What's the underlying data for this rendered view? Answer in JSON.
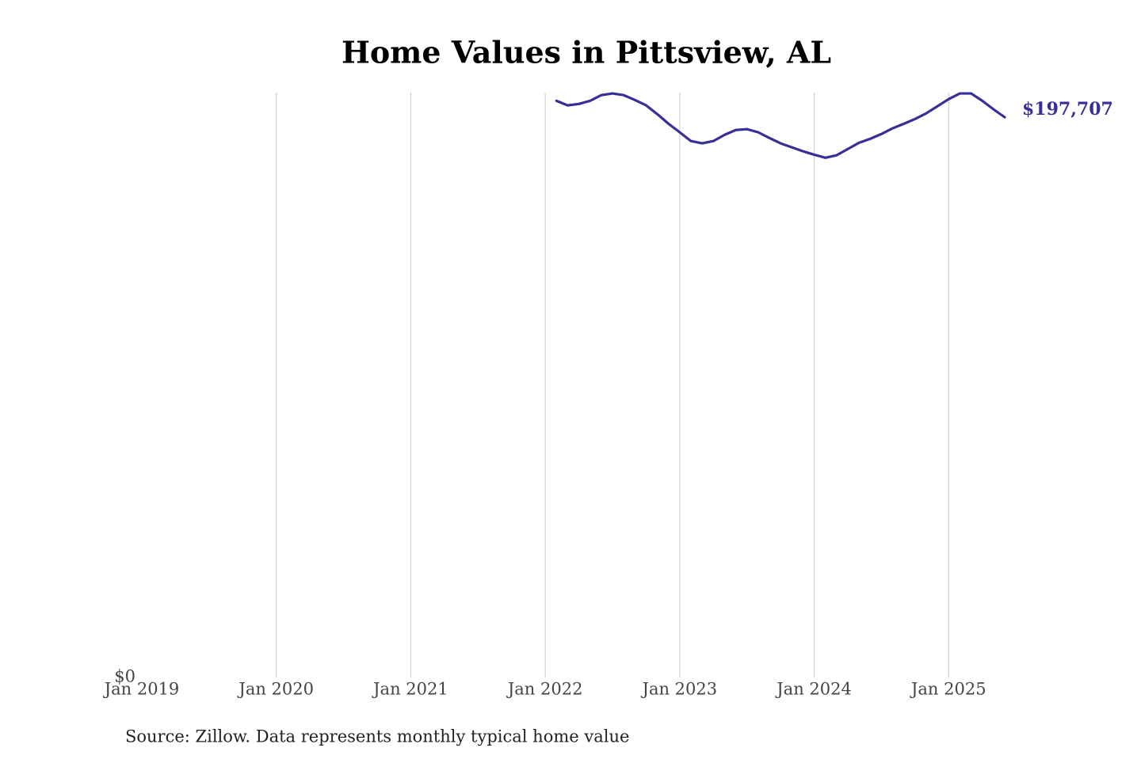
{
  "chart_data": {
    "type": "line",
    "title": "Home Values in Pittsview, AL",
    "source": "Source: Zillow. Data represents monthly typical home value",
    "x": [
      "2022-02",
      "2022-03",
      "2022-04",
      "2022-05",
      "2022-06",
      "2022-07",
      "2022-08",
      "2022-09",
      "2022-10",
      "2022-11",
      "2022-12",
      "2023-01",
      "2023-02",
      "2023-03",
      "2023-04",
      "2023-05",
      "2023-06",
      "2023-07",
      "2023-08",
      "2023-09",
      "2023-10",
      "2023-11",
      "2023-12",
      "2024-01",
      "2024-02",
      "2024-03",
      "2024-04",
      "2024-05",
      "2024-06",
      "2024-07",
      "2024-08",
      "2024-09",
      "2024-10",
      "2024-11",
      "2024-12",
      "2025-01",
      "2025-02",
      "2025-03",
      "2025-04",
      "2025-05",
      "2025-06"
    ],
    "series": [
      {
        "name": "Pittsview, AL",
        "color": "#372f98",
        "values": [
          203500,
          201900,
          202400,
          203500,
          205500,
          206100,
          205500,
          203800,
          201900,
          198800,
          195400,
          192400,
          189300,
          188500,
          189300,
          191500,
          193200,
          193500,
          192400,
          190400,
          188500,
          187100,
          185700,
          184500,
          183400,
          184300,
          186500,
          188700,
          190100,
          191800,
          193800,
          195400,
          197100,
          199100,
          201600,
          204100,
          206100,
          206100,
          203500,
          200500,
          197707
        ]
      }
    ],
    "annotations": [
      {
        "text": "$197,707",
        "x": "2025-06",
        "y": 197707
      }
    ],
    "xlim": [
      "2019-01",
      "2025-06"
    ],
    "xticks": [
      {
        "value": "2019-01",
        "label": "Jan 2019"
      },
      {
        "value": "2020-01",
        "label": "Jan 2020"
      },
      {
        "value": "2021-01",
        "label": "Jan 2021"
      },
      {
        "value": "2022-01",
        "label": "Jan 2022"
      },
      {
        "value": "2023-01",
        "label": "Jan 2023"
      },
      {
        "value": "2024-01",
        "label": "Jan 2024"
      },
      {
        "value": "2025-01",
        "label": "Jan 2025"
      }
    ],
    "ylim": [
      0,
      206400
    ],
    "yticks": [
      {
        "value": 0,
        "label": "$0"
      }
    ],
    "grid": true
  }
}
